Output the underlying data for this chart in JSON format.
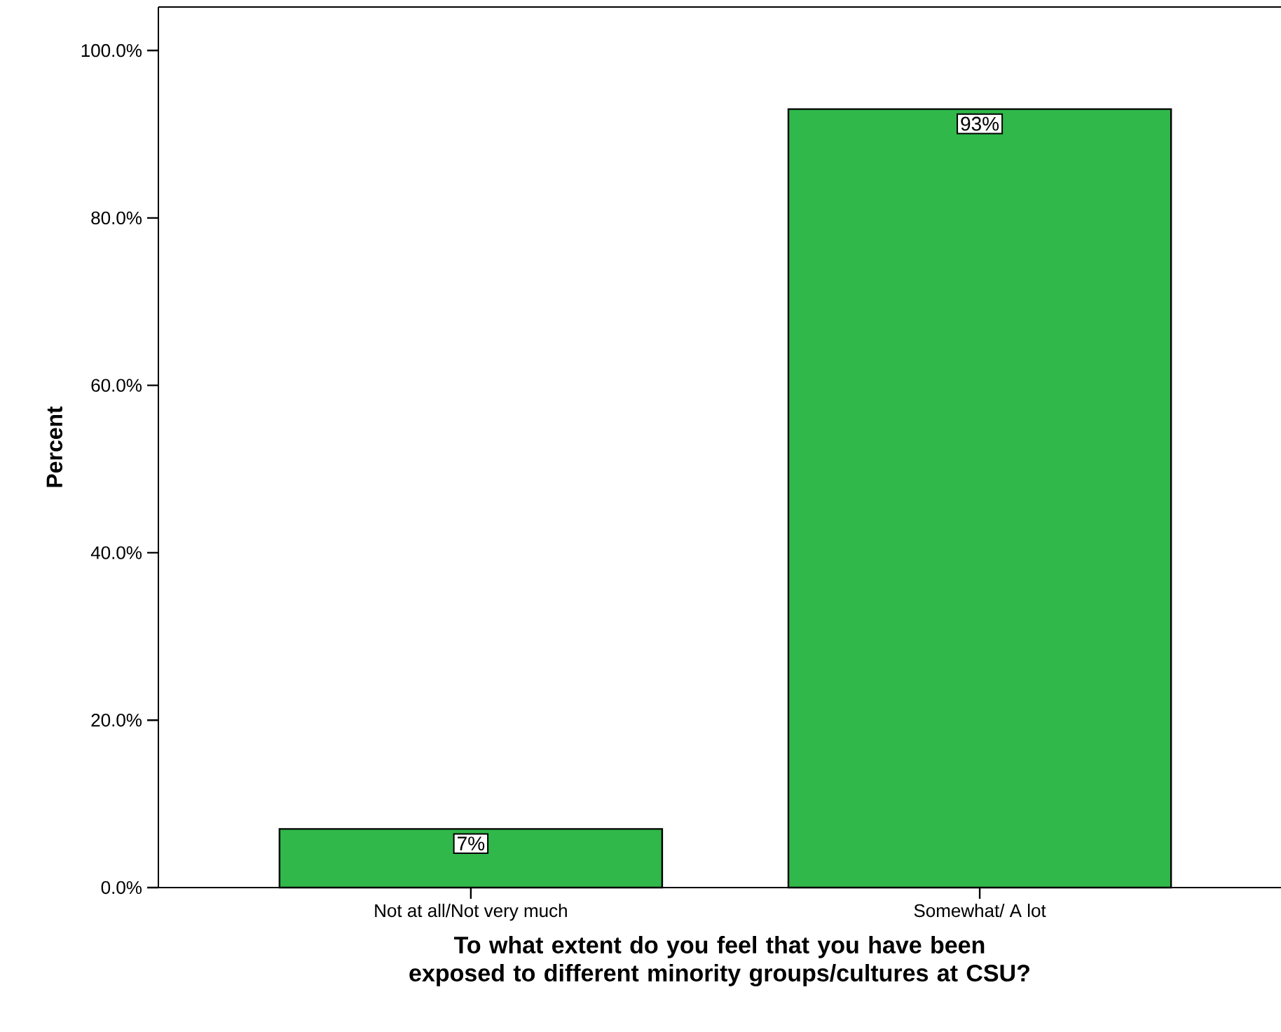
{
  "chart_data": {
    "type": "bar",
    "categories": [
      "Not at all/Not very much",
      "Somewhat/ A lot"
    ],
    "values": [
      7,
      93
    ],
    "value_labels": [
      "7%",
      "93%"
    ],
    "color": "#30b84a",
    "xlabel": "To what extent do you feel that you have been exposed to different minority groups/cultures at CSU?",
    "ylabel": "Percent",
    "ylim": [
      0,
      105.2
    ],
    "yticks": [
      {
        "value": 0,
        "label": "0.0%"
      },
      {
        "value": 20,
        "label": "20.0%"
      },
      {
        "value": 40,
        "label": "40.0%"
      },
      {
        "value": 60,
        "label": "60.0%"
      },
      {
        "value": 80,
        "label": "80.0%"
      },
      {
        "value": 100,
        "label": "100.0%"
      }
    ]
  }
}
